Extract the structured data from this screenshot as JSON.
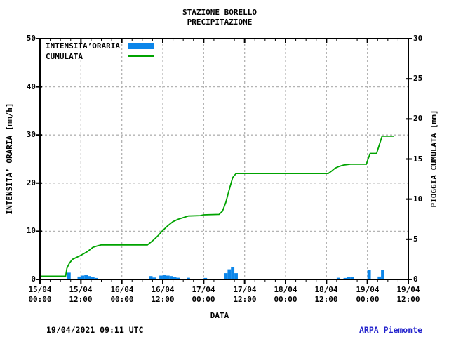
{
  "header": {
    "title": "STAZIONE BORELLO",
    "subtitle": "PRECIPITAZIONE"
  },
  "legend": [
    {
      "label": "INTENSITA’ORARIA",
      "swatch": "bar",
      "color": "#0c86ea"
    },
    {
      "label": "CUMULATA",
      "swatch": "line",
      "color": "#00a300"
    }
  ],
  "footer": {
    "timestamp": "19/04/2021 09:11 UTC",
    "brand": "ARPA Piemonte",
    "brand_color": "#2222cc"
  },
  "chart_data": {
    "type": "mixed_bar_line",
    "title": "STAZIONE BORELLO",
    "subtitle": "PRECIPITAZIONE",
    "xlabel": "DATA",
    "x_range_hours": [
      0,
      108
    ],
    "x_major_tick_every_hours": 12,
    "x_minor_tick_every_hours": 3,
    "x_tick_labels": [
      {
        "date": "15/04",
        "time": "00:00"
      },
      {
        "date": "15/04",
        "time": "12:00"
      },
      {
        "date": "16/04",
        "time": "00:00"
      },
      {
        "date": "16/04",
        "time": "12:00"
      },
      {
        "date": "17/04",
        "time": "00:00"
      },
      {
        "date": "17/04",
        "time": "12:00"
      },
      {
        "date": "18/04",
        "time": "00:00"
      },
      {
        "date": "18/04",
        "time": "12:00"
      },
      {
        "date": "19/04",
        "time": "00:00"
      },
      {
        "date": "19/04",
        "time": "12:00"
      }
    ],
    "left_axis": {
      "label": "INTENSITA’ ORARIA [mm/h]",
      "min": 0,
      "max": 50,
      "ticks": [
        0,
        10,
        20,
        30,
        40,
        50
      ]
    },
    "right_axis": {
      "label": "PIOGGIA CUMULATA [mm]",
      "min": 0,
      "max": 30,
      "ticks": [
        0,
        5,
        10,
        15,
        20,
        25,
        30
      ]
    },
    "grid": {
      "color": "#b3b3b3",
      "style": "dashed",
      "h_lines_left_axis_values": [
        10,
        20,
        30,
        40
      ],
      "v_lines_hours": [
        12,
        24,
        36,
        48,
        60,
        72,
        84,
        96
      ]
    },
    "frame_color": "#000000",
    "series": [
      {
        "name": "INTENSITA’ORARIA",
        "type": "bar",
        "axis": "left",
        "unit": "mm/h",
        "color": "#0c86ea",
        "bars_hour_value": [
          [
            8,
            1.4
          ],
          [
            11,
            0.6
          ],
          [
            12,
            0.8
          ],
          [
            13,
            0.9
          ],
          [
            14,
            0.7
          ],
          [
            15,
            0.5
          ],
          [
            16,
            0.3
          ],
          [
            32,
            0.7
          ],
          [
            33,
            0.4
          ],
          [
            35,
            0.8
          ],
          [
            36,
            1.0
          ],
          [
            37,
            0.8
          ],
          [
            38,
            0.7
          ],
          [
            39,
            0.55
          ],
          [
            40,
            0.35
          ],
          [
            43,
            0.35
          ],
          [
            48,
            0.3
          ],
          [
            54,
            1.3
          ],
          [
            55,
            2.1
          ],
          [
            56,
            2.5
          ],
          [
            57,
            1.3
          ],
          [
            87,
            0.35
          ],
          [
            89,
            0.3
          ],
          [
            90,
            0.5
          ],
          [
            91,
            0.55
          ],
          [
            96,
            2.0
          ],
          [
            99,
            0.6
          ],
          [
            100,
            2.0
          ]
        ]
      },
      {
        "name": "CUMULATA",
        "type": "line",
        "axis": "right",
        "unit": "mm",
        "color": "#00a300",
        "points_hour_value": [
          [
            0,
            0.4
          ],
          [
            7.5,
            0.4
          ],
          [
            7.9,
            1.4
          ],
          [
            8.6,
            2.0
          ],
          [
            9.5,
            2.5
          ],
          [
            12,
            3.0
          ],
          [
            14,
            3.5
          ],
          [
            15.5,
            4.0
          ],
          [
            17,
            4.2
          ],
          [
            18,
            4.3
          ],
          [
            31.5,
            4.3
          ],
          [
            33,
            4.8
          ],
          [
            34.5,
            5.4
          ],
          [
            36,
            6.1
          ],
          [
            37.5,
            6.7
          ],
          [
            39,
            7.2
          ],
          [
            40.5,
            7.5
          ],
          [
            42,
            7.7
          ],
          [
            43.5,
            7.9
          ],
          [
            47,
            7.95
          ],
          [
            48,
            8.05
          ],
          [
            52.5,
            8.1
          ],
          [
            53.5,
            8.5
          ],
          [
            54.5,
            9.6
          ],
          [
            55.5,
            11.2
          ],
          [
            56.5,
            12.7
          ],
          [
            57.5,
            13.2
          ],
          [
            84.5,
            13.2
          ],
          [
            85.5,
            13.5
          ],
          [
            86.5,
            13.85
          ],
          [
            87.5,
            14.05
          ],
          [
            89,
            14.25
          ],
          [
            91,
            14.35
          ],
          [
            95.7,
            14.35
          ],
          [
            96.2,
            15.0
          ],
          [
            96.8,
            15.7
          ],
          [
            98.7,
            15.7
          ],
          [
            99.3,
            16.5
          ],
          [
            100.3,
            17.85
          ],
          [
            103.8,
            17.85
          ]
        ]
      }
    ]
  }
}
